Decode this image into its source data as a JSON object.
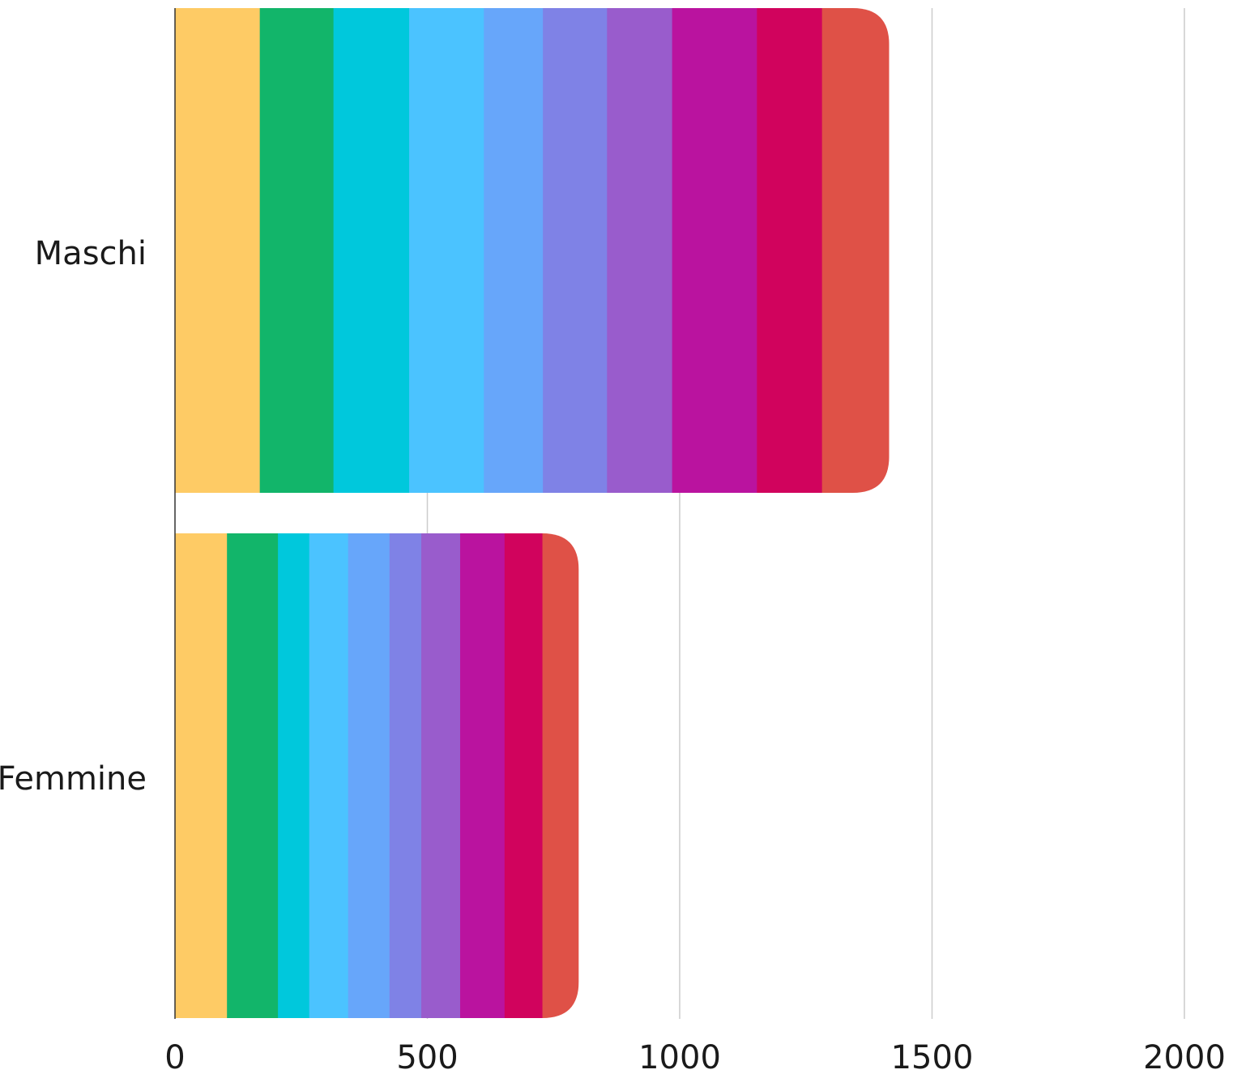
{
  "chart_data": {
    "type": "bar",
    "orientation": "horizontal",
    "stacked": true,
    "categories": [
      "Maschi",
      "Femmine"
    ],
    "xlim": [
      0,
      2000
    ],
    "x_ticks": [
      "0",
      "500",
      "1000",
      "1500",
      "2000"
    ],
    "x_tick_values": [
      0,
      500,
      1000,
      1500,
      2000
    ],
    "grid": true,
    "series": [
      {
        "color": "#FECB65",
        "values": [
          168,
          103
        ]
      },
      {
        "color": "#12B56A",
        "values": [
          146,
          101
        ]
      },
      {
        "color": "#00C8DC",
        "values": [
          150,
          62
        ]
      },
      {
        "color": "#4BC3FF",
        "values": [
          148,
          77
        ]
      },
      {
        "color": "#67A6FA",
        "values": [
          117,
          82
        ]
      },
      {
        "color": "#7F82E6",
        "values": [
          127,
          63
        ]
      },
      {
        "color": "#995CCC",
        "values": [
          129,
          77
        ]
      },
      {
        "color": "#BA139F",
        "values": [
          168,
          88
        ]
      },
      {
        "color": "#D1035D",
        "values": [
          129,
          75
        ]
      },
      {
        "color": "#DF5147",
        "values": [
          133,
          72
        ]
      }
    ]
  }
}
